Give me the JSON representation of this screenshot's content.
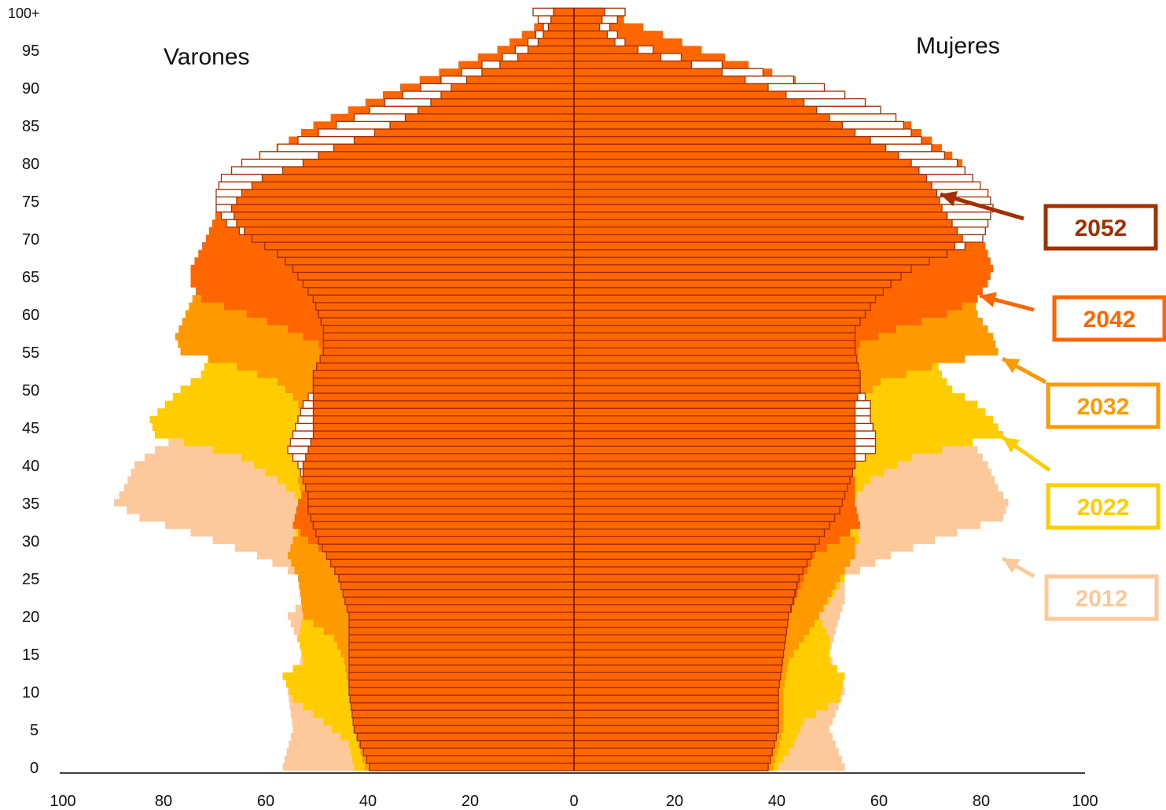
{
  "labels": {
    "left": "Varones",
    "right": "Mujeres"
  },
  "chart_data": {
    "type": "bar",
    "orientation": "horizontal-population-pyramid",
    "x_range": [
      -100,
      100
    ],
    "x_ticks": [
      -100,
      -80,
      -60,
      -40,
      -20,
      0,
      20,
      40,
      60,
      80,
      100
    ],
    "x_tick_labels": [
      "100",
      "80",
      "60",
      "40",
      "20",
      "0",
      "20",
      "40",
      "60",
      "80",
      "100"
    ],
    "y_ticks": [
      0,
      5,
      10,
      15,
      20,
      25,
      30,
      35,
      40,
      45,
      50,
      55,
      60,
      65,
      70,
      75,
      80,
      85,
      90,
      95,
      100
    ],
    "y_tick_labels": [
      "0",
      "5",
      "10",
      "15",
      "20",
      "25",
      "30",
      "35",
      "40",
      "45",
      "50",
      "55",
      "60",
      "65",
      "70",
      "75",
      "80",
      "85",
      "90",
      "95",
      "100+"
    ],
    "series": [
      {
        "name": "2012",
        "color": "#FDC99A",
        "men": {
          "ages": [
            0,
            5,
            10,
            15,
            20,
            22,
            25,
            28,
            31,
            33,
            35,
            37,
            40,
            42,
            45,
            47,
            50,
            55,
            60,
            65,
            70,
            75,
            80,
            85,
            90,
            95,
            100
          ],
          "values": [
            57,
            55,
            56,
            53,
            56,
            53,
            53,
            62,
            75,
            85,
            90,
            88,
            86,
            82,
            74,
            68,
            65,
            63,
            62,
            61,
            57,
            50,
            42,
            32,
            20,
            9,
            2
          ]
        },
        "women": {
          "ages": [
            0,
            5,
            10,
            15,
            20,
            22,
            25,
            28,
            31,
            33,
            35,
            37,
            40,
            42,
            45,
            47,
            50,
            55,
            60,
            65,
            70,
            75,
            80,
            85,
            90,
            95,
            100
          ],
          "values": [
            53,
            50,
            53,
            50,
            52,
            53,
            53,
            62,
            75,
            84,
            85,
            83,
            81,
            79,
            71,
            66,
            63,
            62,
            64,
            67,
            68,
            66,
            61,
            50,
            35,
            16,
            3
          ]
        }
      },
      {
        "name": "2022",
        "color": "#FFCC00",
        "men": {
          "ages": [
            0,
            3,
            6,
            9,
            12,
            14,
            17,
            20,
            25,
            27,
            30,
            32,
            35,
            38,
            41,
            44,
            46,
            48,
            50,
            52,
            55,
            60,
            65,
            70,
            75,
            80,
            85,
            90,
            95,
            100
          ],
          "values": [
            43,
            44,
            49,
            55,
            57,
            53,
            54,
            53,
            53,
            53,
            55,
            54,
            53,
            58,
            65,
            82,
            83,
            80,
            77,
            73,
            71,
            70,
            69,
            66,
            60,
            52,
            41,
            26,
            11,
            2
          ]
        },
        "women": {
          "ages": [
            0,
            3,
            6,
            9,
            12,
            14,
            17,
            20,
            25,
            27,
            30,
            32,
            35,
            38,
            41,
            44,
            46,
            48,
            50,
            52,
            55,
            60,
            65,
            70,
            75,
            80,
            85,
            90,
            95,
            100
          ],
          "values": [
            40,
            43,
            45,
            52,
            53,
            50,
            50,
            48,
            53,
            53,
            56,
            55,
            54,
            58,
            66,
            84,
            82,
            79,
            74,
            72,
            70,
            72,
            74,
            74,
            72,
            67,
            56,
            40,
            20,
            5
          ]
        }
      },
      {
        "name": "2032",
        "color": "#FF9900",
        "men": {
          "ages": [
            0,
            5,
            10,
            14,
            17,
            20,
            25,
            28,
            30,
            32,
            35,
            38,
            40,
            43,
            45,
            47,
            49,
            51,
            53,
            55,
            57,
            60,
            63,
            65,
            70,
            75,
            80,
            85,
            90,
            95,
            100
          ],
          "values": [
            41,
            43,
            44,
            45,
            47,
            53,
            54,
            56,
            55,
            53,
            53,
            54,
            52,
            53,
            52,
            53,
            55,
            58,
            66,
            77,
            78,
            76,
            74,
            73,
            71,
            67,
            60,
            48,
            32,
            14,
            3
          ]
        },
        "women": {
          "ages": [
            0,
            5,
            10,
            14,
            17,
            20,
            25,
            28,
            30,
            32,
            35,
            38,
            40,
            43,
            45,
            47,
            49,
            51,
            53,
            55,
            57,
            60,
            63,
            65,
            70,
            75,
            80,
            85,
            90,
            95,
            100
          ],
          "values": [
            39,
            41,
            41,
            42,
            45,
            48,
            52,
            55,
            55,
            53,
            54,
            54,
            52,
            53,
            52,
            55,
            57,
            60,
            70,
            83,
            82,
            79,
            78,
            79,
            80,
            79,
            74,
            62,
            44,
            22,
            6
          ]
        }
      },
      {
        "name": "2042",
        "color": "#FF6600",
        "men": {
          "ages": [
            0,
            5,
            10,
            15,
            20,
            25,
            28,
            30,
            32,
            35,
            38,
            40,
            43,
            45,
            48,
            50,
            52,
            54,
            56,
            58,
            60,
            62,
            64,
            66,
            70,
            75,
            80,
            85,
            90,
            95,
            100
          ],
          "values": [
            40,
            41,
            42,
            43,
            44,
            46,
            48,
            52,
            55,
            54,
            52,
            50,
            50,
            52,
            52,
            51,
            51,
            49,
            50,
            56,
            64,
            73,
            75,
            75,
            72,
            69,
            63,
            51,
            34,
            15,
            3
          ]
        },
        "women": {
          "ages": [
            0,
            5,
            10,
            15,
            20,
            25,
            28,
            30,
            32,
            35,
            38,
            40,
            43,
            45,
            48,
            50,
            52,
            54,
            56,
            58,
            60,
            62,
            64,
            66,
            70,
            75,
            80,
            85,
            90,
            95,
            100
          ],
          "values": [
            38,
            39,
            40,
            40,
            42,
            45,
            47,
            52,
            56,
            55,
            55,
            54,
            55,
            56,
            55,
            56,
            56,
            55,
            56,
            63,
            73,
            79,
            81,
            82,
            80,
            79,
            76,
            66,
            48,
            25,
            6
          ]
        }
      },
      {
        "name": "2052",
        "color": "#FFFFFF",
        "stroke": "#A03000",
        "men": {
          "ages": [
            0,
            5,
            10,
            15,
            20,
            22,
            25,
            28,
            30,
            32,
            34,
            36,
            38,
            40,
            42,
            44,
            46,
            48,
            50,
            52,
            55,
            58,
            60,
            62,
            64,
            66,
            68,
            70,
            72,
            74,
            76,
            78,
            80,
            82,
            84,
            86,
            88,
            90,
            92,
            94,
            96,
            98,
            100
          ],
          "values": [
            40,
            43,
            44,
            44,
            44,
            43,
            46,
            48,
            50,
            51,
            52,
            52,
            53,
            54,
            56,
            55,
            54,
            53,
            51,
            51,
            49,
            49,
            50,
            51,
            53,
            55,
            58,
            63,
            68,
            70,
            70,
            69,
            65,
            58,
            50,
            43,
            37,
            30,
            22,
            14,
            9,
            6,
            8
          ]
        },
        "women": {
          "ages": [
            0,
            5,
            10,
            15,
            20,
            22,
            25,
            28,
            30,
            32,
            34,
            36,
            38,
            40,
            42,
            44,
            46,
            48,
            50,
            52,
            55,
            58,
            60,
            62,
            64,
            66,
            68,
            70,
            72,
            74,
            76,
            78,
            80,
            82,
            84,
            86,
            88,
            90,
            92,
            94,
            96,
            98,
            100
          ],
          "values": [
            38,
            40,
            40,
            41,
            42,
            43,
            44,
            46,
            48,
            50,
            52,
            53,
            54,
            55,
            59,
            59,
            58,
            58,
            56,
            56,
            55,
            55,
            57,
            59,
            62,
            66,
            73,
            80,
            81,
            82,
            81,
            78,
            75,
            70,
            66,
            63,
            57,
            49,
            37,
            21,
            10,
            7,
            10
          ]
        }
      }
    ],
    "fills": [
      {
        "name": "2052 (fill)",
        "color": "#FF6600",
        "stroke": "#A03000",
        "men": {
          "ages": [
            0,
            5,
            10,
            15,
            20,
            25,
            30,
            32,
            34,
            36,
            38,
            40,
            42,
            44,
            46,
            48,
            50,
            52,
            55,
            58,
            60,
            62,
            64,
            66,
            68,
            70,
            72,
            74,
            76,
            78,
            80,
            82,
            84,
            86,
            88,
            90,
            92,
            94,
            96,
            98,
            100
          ],
          "values": [
            40,
            43,
            44,
            44,
            44,
            46,
            50,
            51,
            52,
            52,
            53,
            53,
            52,
            51,
            51,
            51,
            51,
            51,
            49,
            49,
            50,
            51,
            53,
            55,
            58,
            63,
            66,
            67,
            65,
            61,
            53,
            47,
            39,
            33,
            28,
            24,
            18,
            11,
            7,
            5,
            4
          ]
        },
        "women": {
          "ages": [
            0,
            5,
            10,
            15,
            20,
            25,
            30,
            32,
            34,
            36,
            38,
            40,
            42,
            44,
            46,
            48,
            50,
            52,
            55,
            58,
            60,
            62,
            64,
            66,
            68,
            70,
            72,
            74,
            76,
            78,
            80,
            82,
            84,
            86,
            88,
            90,
            92,
            94,
            96,
            98,
            100
          ],
          "values": [
            38,
            40,
            40,
            41,
            42,
            44,
            48,
            50,
            52,
            53,
            54,
            55,
            55,
            55,
            55,
            55,
            56,
            56,
            55,
            55,
            57,
            59,
            62,
            66,
            73,
            76,
            74,
            72,
            71,
            69,
            66,
            61,
            55,
            50,
            45,
            38,
            29,
            17,
            8,
            5,
            6
          ]
        }
      }
    ],
    "callouts": [
      {
        "label": "2052",
        "color": "#A03000",
        "box_border": "#A03000"
      },
      {
        "label": "2042",
        "color": "#FF6600",
        "box_border": "#FF6600"
      },
      {
        "label": "2032",
        "color": "#FF9900",
        "box_border": "#FF9900"
      },
      {
        "label": "2022",
        "color": "#FFCC00",
        "box_border": "#FFCC00"
      },
      {
        "label": "2012",
        "color": "#FDC99A",
        "box_border": "#FDC99A"
      }
    ]
  }
}
